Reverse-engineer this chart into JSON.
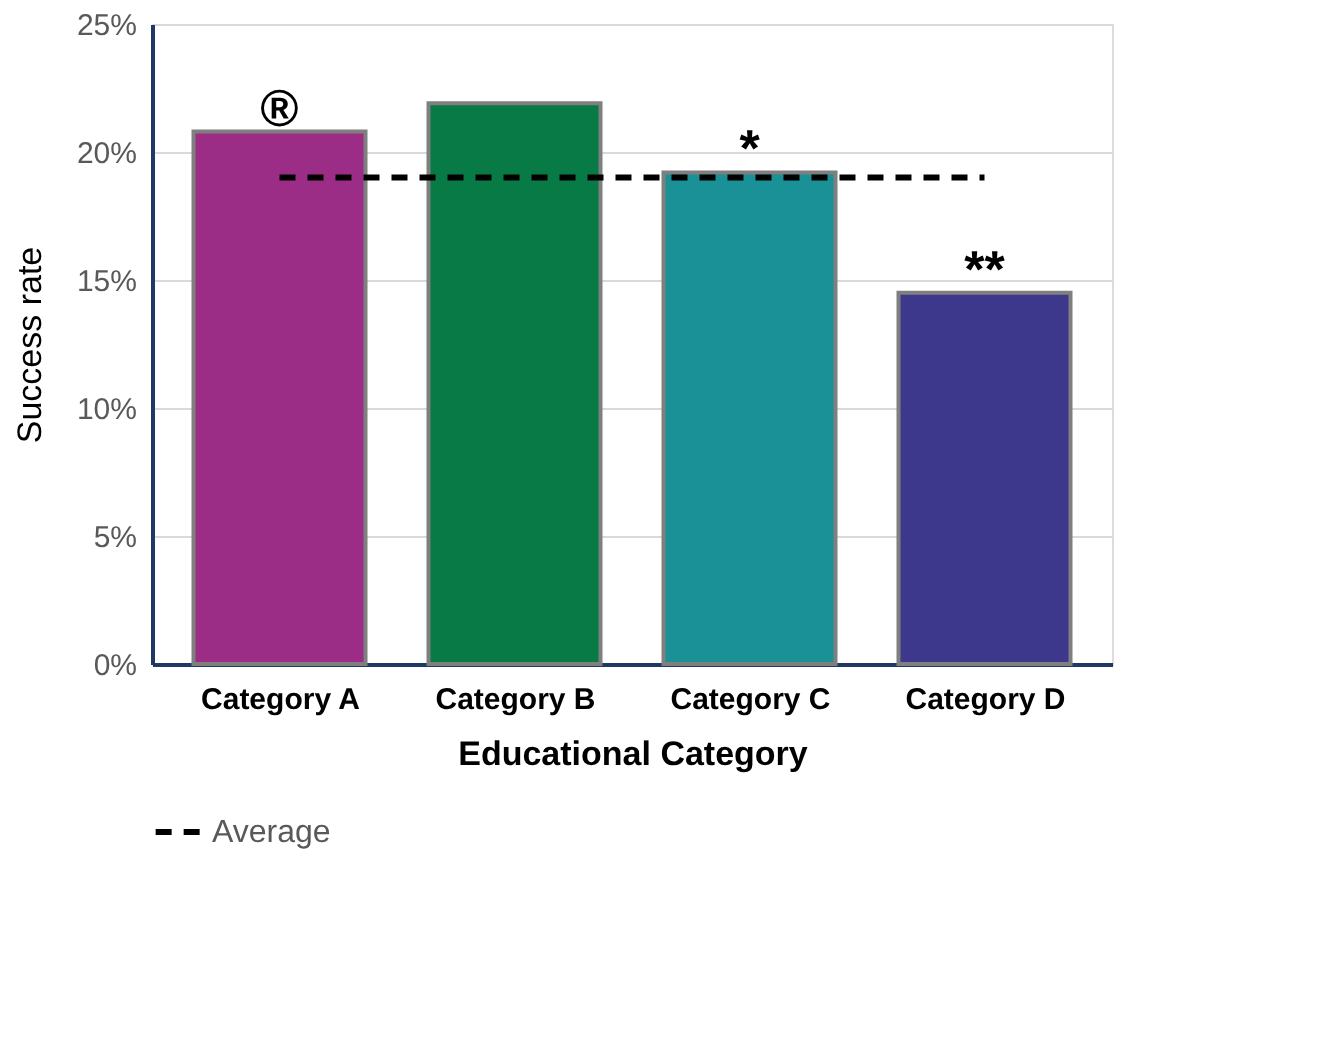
{
  "chart_data": {
    "type": "bar",
    "xlabel": "Educational Category",
    "ylabel": "Success rate",
    "categories": [
      "Category A",
      "Category B",
      "Category C",
      "Category D"
    ],
    "series": [
      {
        "type": "bar",
        "colors": [
          "#9b2d86",
          "#077a45",
          "#1a9196",
          "#3e388c"
        ],
        "values": [
          20.8,
          21.9,
          19.2,
          14.5
        ]
      },
      {
        "type": "line",
        "name": "Average",
        "color": "#000000",
        "line_style": "dashed",
        "marker": "none",
        "values": [
          19.0,
          19.0,
          19.0,
          19.0
        ]
      }
    ],
    "ylim": [
      0,
      25
    ],
    "yticks": [
      {
        "value": 0,
        "label": "0%"
      },
      {
        "value": 5,
        "label": "5%"
      },
      {
        "value": 10,
        "label": "10%"
      },
      {
        "value": 15,
        "label": "15%"
      },
      {
        "value": 20,
        "label": "20%"
      },
      {
        "value": 25,
        "label": "25%"
      }
    ],
    "annotations": [
      {
        "text": "®",
        "x": "Category A",
        "y": 20.8
      },
      {
        "text": "*",
        "x": "Category C",
        "y": 19.2
      },
      {
        "text": "**",
        "x": "Category D",
        "y": 14.5
      }
    ],
    "grid": "y",
    "legend": "bottom"
  }
}
